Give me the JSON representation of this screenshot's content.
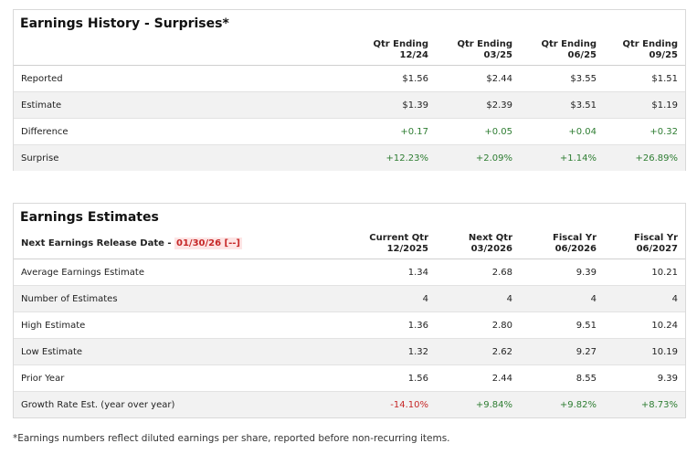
{
  "history": {
    "title": "Earnings History - Surprises*",
    "columns": [
      {
        "line1": "Qtr Ending",
        "line2": "12/24"
      },
      {
        "line1": "Qtr Ending",
        "line2": "03/25"
      },
      {
        "line1": "Qtr Ending",
        "line2": "06/25"
      },
      {
        "line1": "Qtr Ending",
        "line2": "09/25"
      }
    ],
    "rows": [
      {
        "label": "Reported",
        "values": [
          "$1.56",
          "$2.44",
          "$3.55",
          "$1.51"
        ]
      },
      {
        "label": "Estimate",
        "values": [
          "$1.39",
          "$2.39",
          "$3.51",
          "$1.19"
        ]
      },
      {
        "label": "Difference",
        "values": [
          "+0.17",
          "+0.05",
          "+0.04",
          "+0.32"
        ]
      },
      {
        "label": "Surprise",
        "values": [
          "+12.23%",
          "+2.09%",
          "+1.14%",
          "+26.89%"
        ]
      }
    ]
  },
  "estimates": {
    "title": "Earnings Estimates",
    "release_label": "Next Earnings Release Date - ",
    "release_date": "01/30/26 [--]",
    "columns": [
      {
        "line1": "Current Qtr",
        "line2": "12/2025"
      },
      {
        "line1": "Next Qtr",
        "line2": "03/2026"
      },
      {
        "line1": "Fiscal Yr",
        "line2": "06/2026"
      },
      {
        "line1": "Fiscal Yr",
        "line2": "06/2027"
      }
    ],
    "rows": [
      {
        "label": "Average Earnings Estimate",
        "values": [
          "1.34",
          "2.68",
          "9.39",
          "10.21"
        ]
      },
      {
        "label": "Number of Estimates",
        "values": [
          "4",
          "4",
          "4",
          "4"
        ]
      },
      {
        "label": "High Estimate",
        "values": [
          "1.36",
          "2.80",
          "9.51",
          "10.24"
        ]
      },
      {
        "label": "Low Estimate",
        "values": [
          "1.32",
          "2.62",
          "9.27",
          "10.19"
        ]
      },
      {
        "label": "Prior Year",
        "values": [
          "1.56",
          "2.44",
          "8.55",
          "9.39"
        ]
      },
      {
        "label": "Growth Rate Est. (year over year)",
        "values": [
          "-14.10%",
          "+9.84%",
          "+9.82%",
          "+8.73%"
        ]
      }
    ]
  },
  "footnote": "*Earnings numbers reflect diluted earnings per share, reported before non-recurring items.",
  "colors": {
    "positive": "#2e7d32",
    "negative": "#c62828",
    "alt_row": "#f2f2f2",
    "border": "#d9d9d9"
  }
}
